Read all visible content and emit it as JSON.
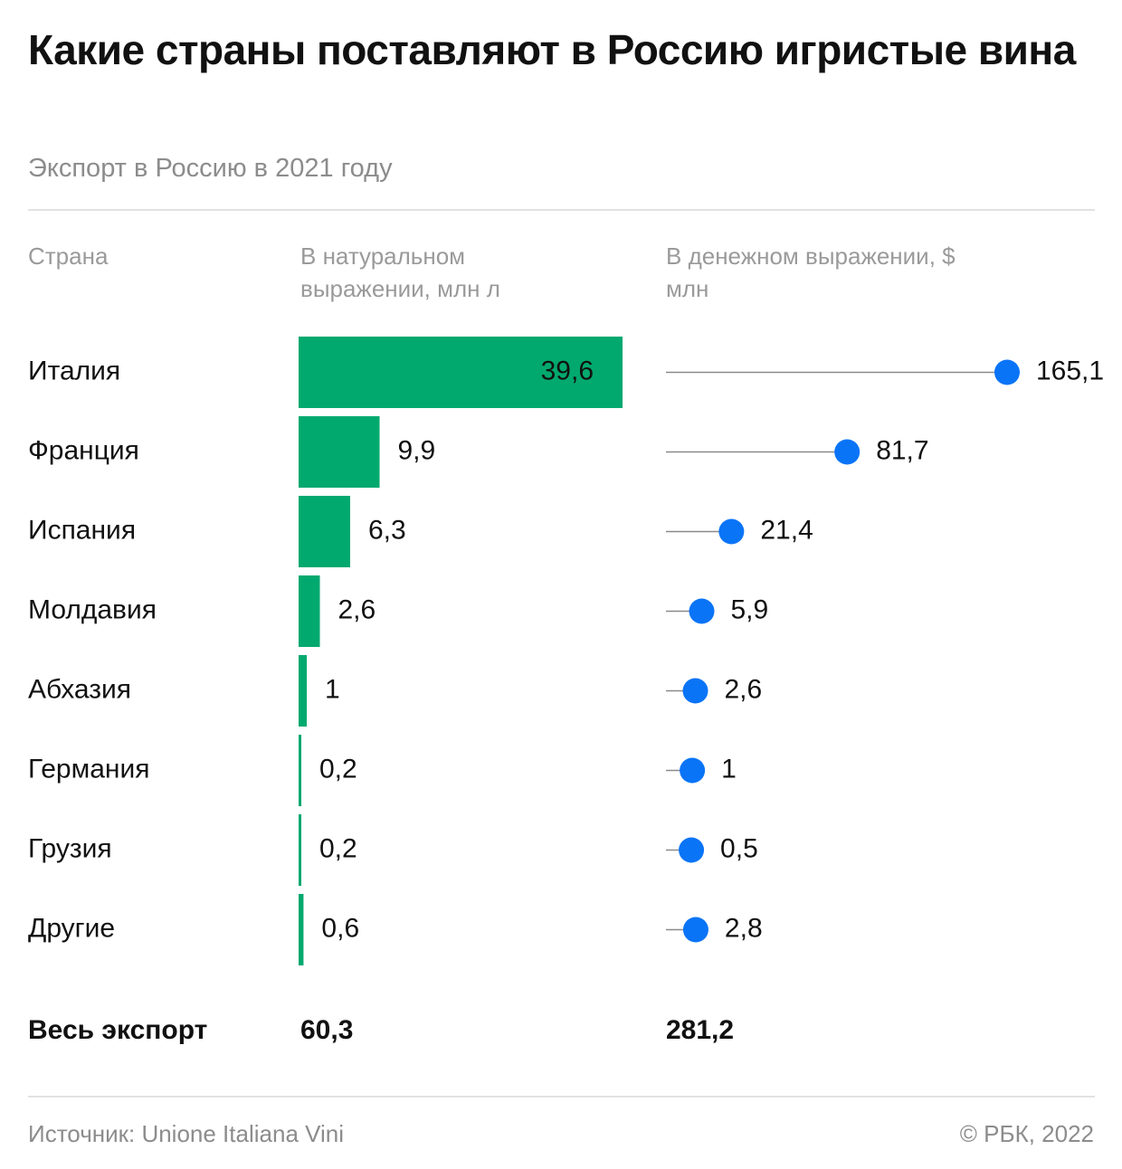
{
  "header": {
    "title": "Какие страны поставляют в Россию игристые вина",
    "subtitle": "Экспорт в Россию в 2021 году"
  },
  "columns": {
    "country": "Страна",
    "volume": "В натуральном выражении, млн л",
    "value": "В денежном выражении, $ млн"
  },
  "colors": {
    "bar": "#02a96f",
    "dot": "#0a74f7",
    "line": "#8a8a8a",
    "inside_label": "#ffffff"
  },
  "chart_data": [
    {
      "type": "bar",
      "orientation": "horizontal",
      "title": "В натуральном выражении, млн л",
      "categories": [
        "Италия",
        "Франция",
        "Испания",
        "Молдавия",
        "Абхазия",
        "Германия",
        "Грузия",
        "Другие"
      ],
      "values": [
        39.6,
        9.9,
        6.3,
        2.6,
        1,
        0.2,
        0.2,
        0.6
      ],
      "labels": [
        "39,6",
        "9,9",
        "6,3",
        "2,6",
        "1",
        "0,2",
        "0,2",
        "0,6"
      ],
      "xlim": [
        0,
        39.6
      ],
      "total_label": "Весь экспорт",
      "total": "60,3"
    },
    {
      "type": "scatter",
      "style": "lollipop",
      "orientation": "horizontal",
      "title": "В денежном выражении, $ млн",
      "categories": [
        "Италия",
        "Франция",
        "Испания",
        "Молдавия",
        "Абхазия",
        "Германия",
        "Грузия",
        "Другие"
      ],
      "values": [
        165.1,
        81.7,
        21.4,
        5.9,
        2.6,
        1,
        0.5,
        2.8
      ],
      "labels": [
        "165,1",
        "81,7",
        "21,4",
        "5,9",
        "2,6",
        "1",
        "0,5",
        "2,8"
      ],
      "xlim": [
        0,
        165.1
      ],
      "total": "281,2"
    }
  ],
  "footer": {
    "source": "Источник: Unione Italiana Vini",
    "copyright": "© РБК, 2022"
  }
}
